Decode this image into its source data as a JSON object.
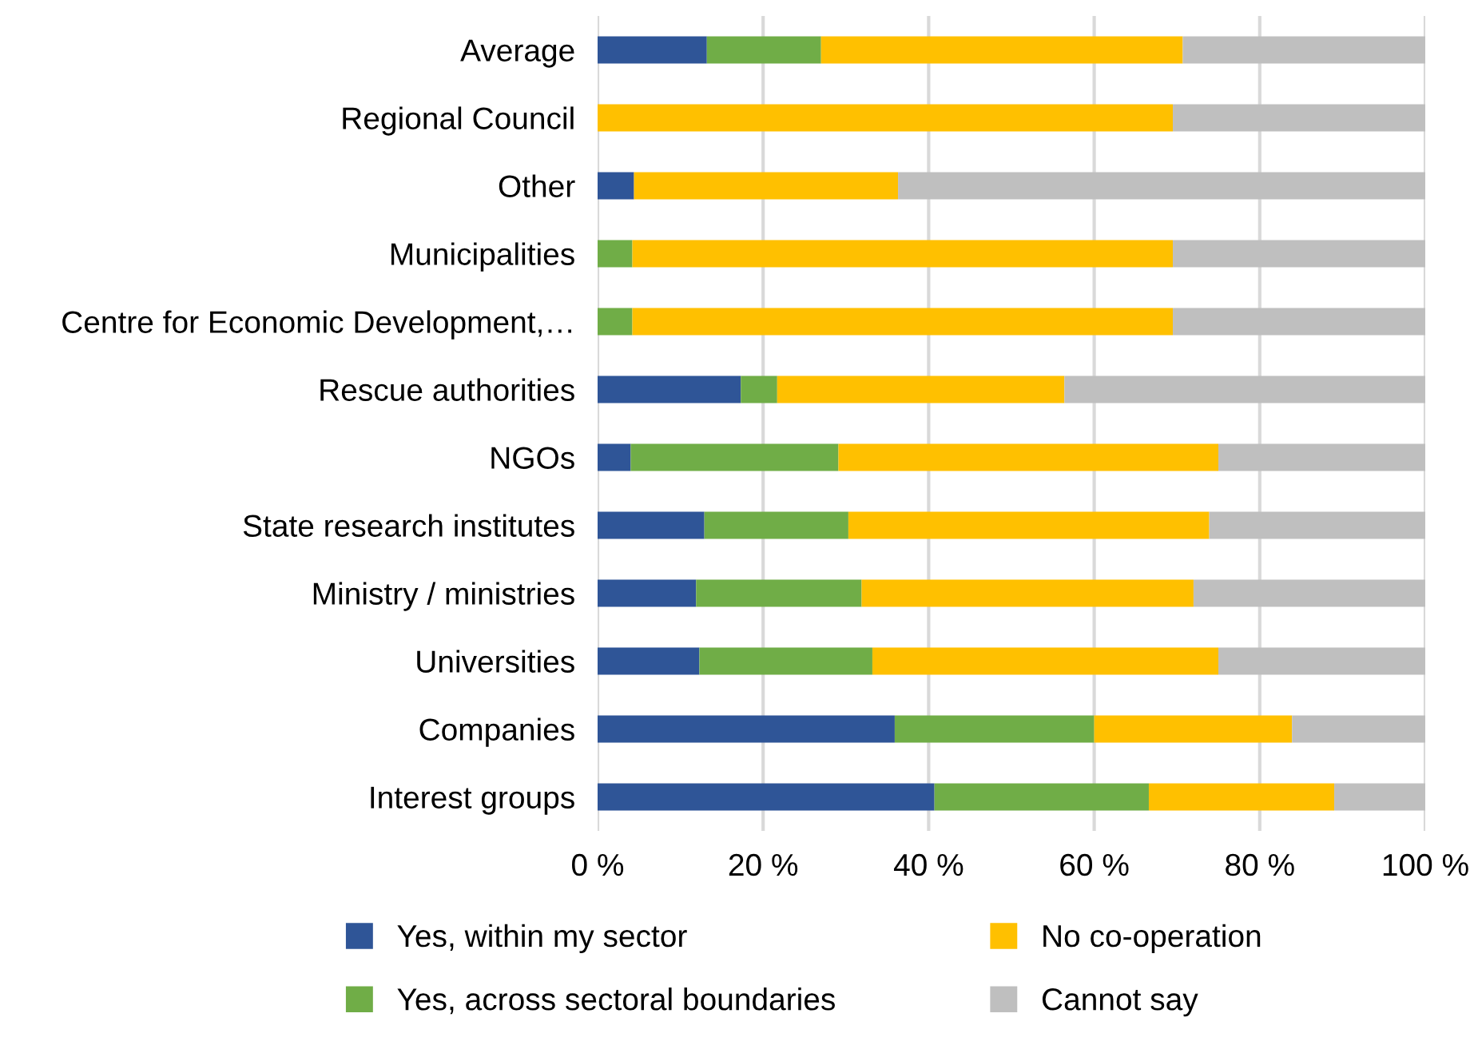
{
  "chart_data": {
    "type": "bar",
    "orientation": "horizontal",
    "stacked": true,
    "categories": [
      "Average",
      "Regional Council",
      "Other",
      "Municipalities",
      "Centre for Economic Development,…",
      "Rescue authorities",
      "NGOs",
      "State research institutes",
      "Ministry / ministries",
      "Universities",
      "Companies",
      "Interest groups"
    ],
    "series": [
      {
        "name": "Yes, within my sector",
        "color": "#2f5597",
        "values": [
          13.2,
          0,
          4.4,
          0,
          0,
          17.3,
          4.0,
          12.9,
          11.9,
          12.3,
          35.9,
          40.7
        ]
      },
      {
        "name": "Yes, across sectoral boundaries",
        "color": "#70ad47",
        "values": [
          13.8,
          0,
          0,
          4.2,
          4.2,
          4.4,
          25.1,
          17.4,
          20.0,
          20.9,
          24.1,
          25.9
        ]
      },
      {
        "name": "No co-operation",
        "color": "#ffc000",
        "values": [
          43.7,
          69.5,
          31.9,
          65.3,
          65.3,
          34.7,
          45.9,
          43.6,
          40.1,
          41.8,
          23.9,
          22.4
        ]
      },
      {
        "name": "Cannot say",
        "color": "#bfbfbf",
        "values": [
          29.3,
          30.5,
          63.7,
          30.5,
          30.5,
          43.6,
          25.0,
          26.1,
          28.0,
          25.0,
          16.1,
          11.0
        ]
      }
    ],
    "xlim": [
      0,
      100
    ],
    "xticks": [
      {
        "value": 0,
        "label": "0 %"
      },
      {
        "value": 20,
        "label": "20 %"
      },
      {
        "value": 40,
        "label": "40 %"
      },
      {
        "value": 60,
        "label": "60 %"
      },
      {
        "value": 80,
        "label": "80 %"
      },
      {
        "value": 100,
        "label": "100 %"
      }
    ],
    "grid": "x",
    "legend": "bottom"
  }
}
